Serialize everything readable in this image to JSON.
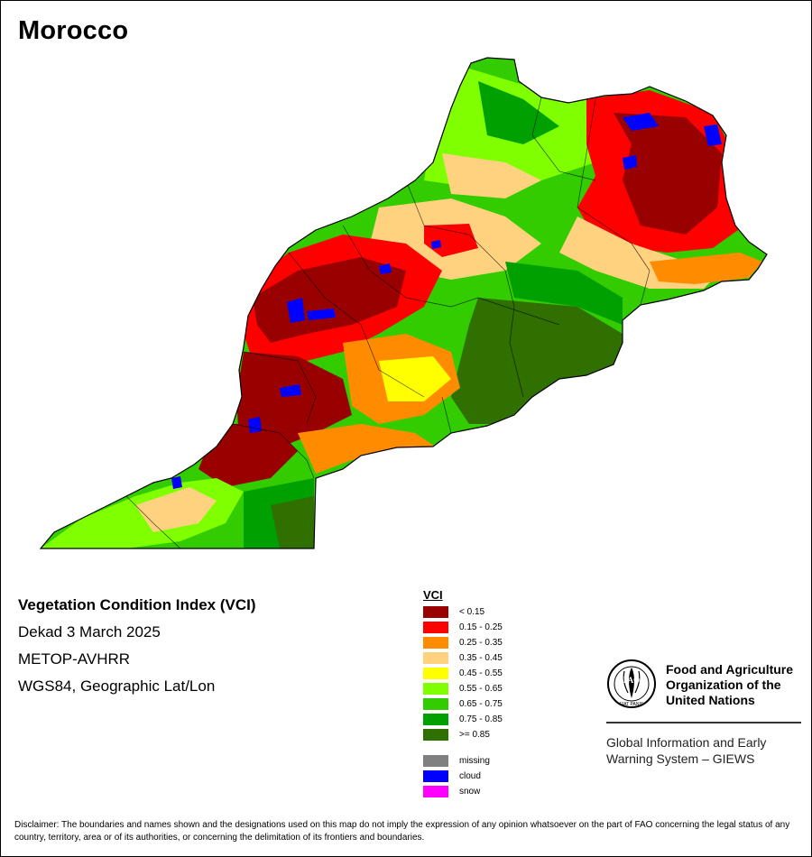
{
  "map_title": "Morocco",
  "info": {
    "index_title": "Vegetation Condition Index (VCI)",
    "period": "Dekad 3 March 2025",
    "sensor": "METOP-AVHRR",
    "projection": "WGS84, Geographic Lat/Lon"
  },
  "legend": {
    "title": "VCI",
    "classes": [
      {
        "label": "< 0.15",
        "color": "#990000"
      },
      {
        "label": "0.15 - 0.25",
        "color": "#ff0000"
      },
      {
        "label": "0.25 - 0.35",
        "color": "#ff8c00"
      },
      {
        "label": "0.35 - 0.45",
        "color": "#ffd27f"
      },
      {
        "label": "0.45 - 0.55",
        "color": "#ffff00"
      },
      {
        "label": "0.55 - 0.65",
        "color": "#80ff00"
      },
      {
        "label": "0.65 - 0.75",
        "color": "#33cc00"
      },
      {
        "label": "0.75 - 0.85",
        "color": "#00a000"
      },
      {
        "label": ">= 0.85",
        "color": "#2f7000"
      }
    ],
    "special": [
      {
        "label": "missing",
        "color": "#808080"
      },
      {
        "label": "cloud",
        "color": "#0000ff"
      },
      {
        "label": "snow",
        "color": "#ff00ff"
      }
    ]
  },
  "org": {
    "name_line1": "Food and Agriculture",
    "name_line2": "Organization of the",
    "name_line3": "United Nations",
    "logo_motto": "FIAT PANIS",
    "logo_letters": "FAO",
    "system_line1": "Global Information and Early",
    "system_line2": "Warning System – GIEWS"
  },
  "disclaimer": "Disclaimer: The boundaries and names shown and the designations used on this map do not imply the expression of any opinion whatsoever on the part of FAO concerning the legal status of any country, territory, area or of its authorities, or concerning the delimitation of its frontiers and boundaries."
}
